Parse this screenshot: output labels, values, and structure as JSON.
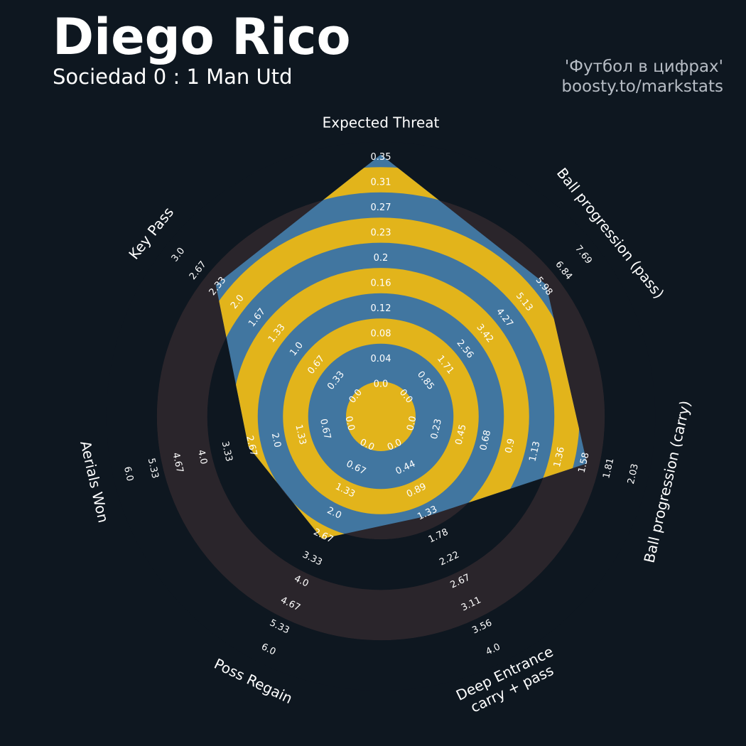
{
  "header": {
    "player_name": "Diego Rico",
    "match": "Sociedad 0 : 1 Man Utd",
    "credit_line1": "'Футбол в цифрах'",
    "credit_line2": "boosty.to/markstats"
  },
  "colors": {
    "background": "#0e1720",
    "outer_ring": "#2a252b",
    "inner_band": "#e2b41b",
    "inner_band_alt": "#0e1720",
    "player_fill": "#4176a0",
    "label_text": "#ffffff"
  },
  "chart_data": {
    "type": "radar",
    "series": [
      {
        "name": "Diego Rico",
        "values": [
          0.35,
          5.98,
          1.58,
          1.33,
          2.67,
          2.67,
          2.33
        ]
      }
    ],
    "axes": [
      {
        "label": "Expected Threat",
        "min": 0.0,
        "max": 0.35,
        "ticks": [
          "0.0",
          "0.04",
          "0.08",
          "0.12",
          "0.16",
          "0.2",
          "0.23",
          "0.27",
          "0.31",
          "0.35"
        ]
      },
      {
        "label": "Ball progression (pass)",
        "min": 0.0,
        "max": 7.69,
        "ticks": [
          "0.0",
          "0.85",
          "1.71",
          "2.56",
          "3.42",
          "4.27",
          "5.13",
          "5.98",
          "6.84",
          "7.69"
        ]
      },
      {
        "label": "Ball progression (carry)",
        "min": 0.0,
        "max": 2.03,
        "ticks": [
          "0.0",
          "0.23",
          "0.45",
          "0.68",
          "0.9",
          "1.13",
          "1.36",
          "1.58",
          "1.81",
          "2.03"
        ]
      },
      {
        "label": "Deep Entrance\ncarry + pass",
        "min": 0.0,
        "max": 4.0,
        "ticks": [
          "0.0",
          "0.44",
          "0.89",
          "1.33",
          "1.78",
          "2.22",
          "2.67",
          "3.11",
          "3.56",
          "4.0"
        ]
      },
      {
        "label": "Poss Regain",
        "min": 0.0,
        "max": 6.0,
        "ticks": [
          "0.0",
          "0.67",
          "1.33",
          "2.0",
          "2.67",
          "3.33",
          "4.0",
          "4.67",
          "5.33",
          "6.0"
        ]
      },
      {
        "label": "Aerials Won",
        "min": 0.0,
        "max": 6.0,
        "ticks": [
          "0.0",
          "0.67",
          "1.33",
          "2.0",
          "2.67",
          "3.33",
          "4.0",
          "4.67",
          "5.33",
          "6.0"
        ]
      },
      {
        "label": "Key Pass",
        "min": 0.0,
        "max": 3.0,
        "ticks": [
          "0.0",
          "0.33",
          "0.67",
          "1.0",
          "1.33",
          "1.67",
          "2.0",
          "2.33",
          "2.67",
          "3.0"
        ]
      }
    ]
  }
}
